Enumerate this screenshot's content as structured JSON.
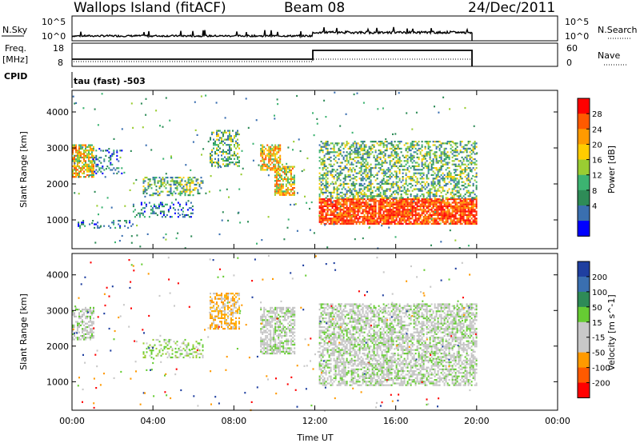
{
  "header": {
    "station": "Wallops Island (fitACF)",
    "beam": "Beam 08",
    "date": "24/Dec/2011"
  },
  "panels": {
    "nsky": {
      "label": "N.Sky",
      "left_ticks": [
        "10^5",
        "10^0"
      ],
      "right_ticks": [
        "10^5",
        "10^0"
      ],
      "right_label": "N.Search"
    },
    "freq": {
      "label_top": "Freq.",
      "label_bottom": "[MHz]",
      "left_ticks": [
        "18",
        "8"
      ],
      "right_ticks": [
        "60",
        "0"
      ],
      "right_label": "Nave"
    },
    "cpid": {
      "label": "CPID",
      "program": "tau (fast) -503"
    }
  },
  "chart_data": [
    {
      "type": "heatmap",
      "title": "",
      "xlabel": "Time UT",
      "ylabel": "Slant Range [km]",
      "x_ticks": [
        "00:00",
        "04:00",
        "08:00",
        "12:00",
        "16:00",
        "20:00",
        "00:00"
      ],
      "y_ticks": [
        "1000",
        "2000",
        "3000",
        "4000"
      ],
      "ylim": [
        200,
        4600
      ],
      "colorbar": {
        "label": "Power [dB]",
        "ticks": [
          "28",
          "24",
          "20",
          "16",
          "12",
          "8",
          "4"
        ],
        "colors": [
          "#ff0000",
          "#ff5a00",
          "#ff9a00",
          "#ffcc00",
          "#9acd32",
          "#3cb371",
          "#2e8b57",
          "#3a6fb0",
          "#0000ff"
        ]
      },
      "echo_regions": [
        {
          "t0": 0.0,
          "t1": 1.1,
          "r0": 2200,
          "r1": 3100,
          "level": "strong"
        },
        {
          "t0": 1.0,
          "t1": 2.5,
          "r0": 2300,
          "r1": 3000,
          "level": "weak"
        },
        {
          "t0": 3.5,
          "t1": 6.5,
          "r0": 1700,
          "r1": 2200,
          "level": "medium"
        },
        {
          "t0": 0.2,
          "t1": 3.0,
          "r0": 800,
          "r1": 1000,
          "level": "weak"
        },
        {
          "t0": 3.0,
          "t1": 6.0,
          "r0": 1100,
          "r1": 1500,
          "level": "weak"
        },
        {
          "t0": 6.8,
          "t1": 8.3,
          "r0": 2500,
          "r1": 3500,
          "level": "medium"
        },
        {
          "t0": 9.3,
          "t1": 10.3,
          "r0": 2400,
          "r1": 3100,
          "level": "strong"
        },
        {
          "t0": 10.0,
          "t1": 11.0,
          "r0": 1700,
          "r1": 2500,
          "level": "strong"
        },
        {
          "t0": 12.2,
          "t1": 20.0,
          "r0": 900,
          "r1": 1600,
          "level": "very-strong"
        },
        {
          "t0": 12.2,
          "t1": 20.0,
          "r0": 1600,
          "r1": 3200,
          "level": "medium"
        }
      ]
    },
    {
      "type": "heatmap",
      "title": "",
      "xlabel": "Time UT",
      "ylabel": "Slant Range [km]",
      "x_ticks": [
        "00:00",
        "04:00",
        "08:00",
        "12:00",
        "16:00",
        "20:00",
        "00:00"
      ],
      "y_ticks": [
        "1000",
        "2000",
        "3000",
        "4000"
      ],
      "ylim": [
        200,
        4600
      ],
      "colorbar": {
        "label": "Velocity [m s^-1]",
        "ticks": [
          "200",
          "100",
          "50",
          "15",
          "-15",
          "-50",
          "-100",
          "-200"
        ],
        "colors": [
          "#1f3fa0",
          "#3a6fb0",
          "#2e8b57",
          "#66cc33",
          "#c8c8c8",
          "#c8c8c8",
          "#ff9a00",
          "#ff5a00",
          "#ff0000"
        ]
      },
      "echo_regions": [
        {
          "t0": 0.0,
          "t1": 1.1,
          "r0": 2200,
          "r1": 3100,
          "level": "ground"
        },
        {
          "t0": 3.5,
          "t1": 6.5,
          "r0": 1700,
          "r1": 2200,
          "level": "positive"
        },
        {
          "t0": 6.8,
          "t1": 8.3,
          "r0": 2500,
          "r1": 3500,
          "level": "negative"
        },
        {
          "t0": 9.3,
          "t1": 11.0,
          "r0": 1800,
          "r1": 3100,
          "level": "ground"
        },
        {
          "t0": 12.2,
          "t1": 20.0,
          "r0": 900,
          "r1": 3200,
          "level": "ground"
        }
      ]
    }
  ]
}
